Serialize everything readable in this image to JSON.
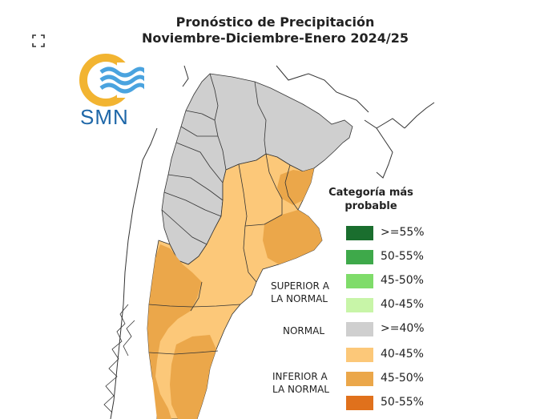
{
  "title": {
    "line1": "Pronóstico de Precipitación",
    "line2": "Noviembre-Diciembre-Enero 2024/25"
  },
  "logo": {
    "text": "SMN"
  },
  "legend": {
    "title": "Categoría más probable",
    "items": [
      {
        "label": ">=55%",
        "color": "#1a6e2e"
      },
      {
        "label": "50-55%",
        "color": "#3ea94a"
      },
      {
        "label": "45-50%",
        "color": "#7fdc6a"
      },
      {
        "label": "40-45%",
        "color": "#c8f5a8"
      },
      {
        "label": ">=40%",
        "color": "#cfcfcf"
      },
      {
        "label": "40-45%",
        "color": "#fcc879"
      },
      {
        "label": "45-50%",
        "color": "#eba74a"
      },
      {
        "label": "50-55%",
        "color": "#e0711c"
      }
    ],
    "categories": {
      "superior": "SUPERIOR A LA NORMAL",
      "normal": "NORMAL",
      "inferior": "INFERIOR A LA NORMAL"
    }
  },
  "icons": {
    "expand": "expand-icon"
  }
}
